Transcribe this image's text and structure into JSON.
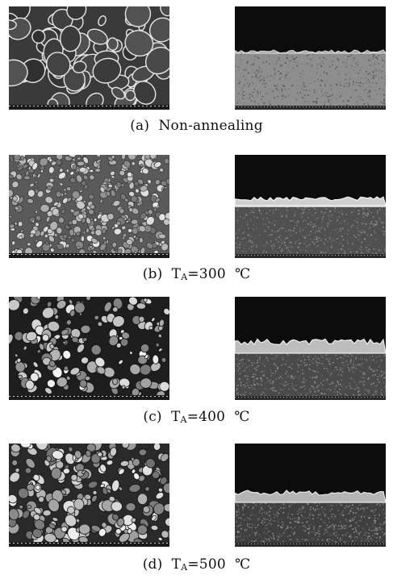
{
  "figure": {
    "panels": [
      {
        "id": "a",
        "caption_label": "(a)",
        "caption_text": "Non-annealing",
        "annealing": false
      },
      {
        "id": "b",
        "caption_label": "(b)",
        "caption_T": "T",
        "caption_sub": "A",
        "caption_value": "=300",
        "caption_unit": "℃",
        "annealing": true
      },
      {
        "id": "c",
        "caption_label": "(c)",
        "caption_T": "T",
        "caption_sub": "A",
        "caption_value": "=400",
        "caption_unit": "℃",
        "annealing": true
      },
      {
        "id": "d",
        "caption_label": "(d)",
        "caption_T": "T",
        "caption_sub": "A",
        "caption_value": "=500",
        "caption_unit": "℃",
        "annealing": true
      }
    ]
  }
}
